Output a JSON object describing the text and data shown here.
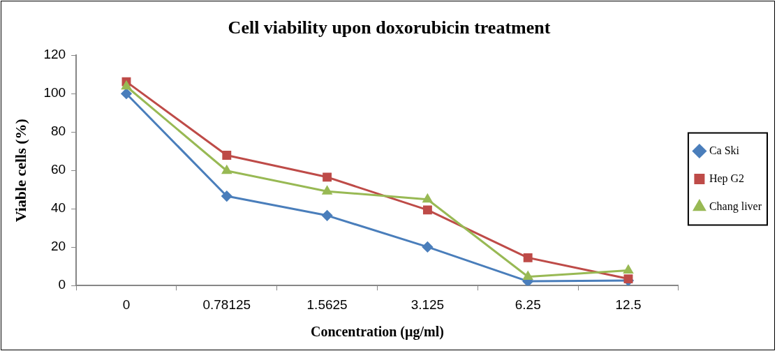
{
  "chart_data": {
    "type": "line",
    "title": "Cell viability upon doxorubicin treatment",
    "xlabel": "Concentration (µg/ml)",
    "ylabel": "Viable cells (%)",
    "categories": [
      "0",
      "0.78125",
      "1.5625",
      "3.125",
      "6.25",
      "12.5"
    ],
    "series": [
      {
        "name": "Ca Ski",
        "color": "#4a7ebb",
        "marker": "diamond",
        "values": [
          100,
          46.6,
          36.5,
          20.1,
          2.2,
          2.6
        ]
      },
      {
        "name": "Hep G2",
        "color": "#be4b48",
        "marker": "square",
        "values": [
          106.2,
          67.9,
          56.5,
          39.4,
          14.5,
          3.5
        ]
      },
      {
        "name": "Chang liver",
        "color": "#98b954",
        "marker": "triangle",
        "values": [
          103.8,
          59.8,
          49.1,
          44.9,
          4.6,
          7.9
        ]
      }
    ],
    "ylim": [
      0,
      120
    ],
    "yticks": [
      0,
      20,
      40,
      60,
      80,
      100,
      120
    ],
    "grid": false,
    "legend": "right"
  }
}
